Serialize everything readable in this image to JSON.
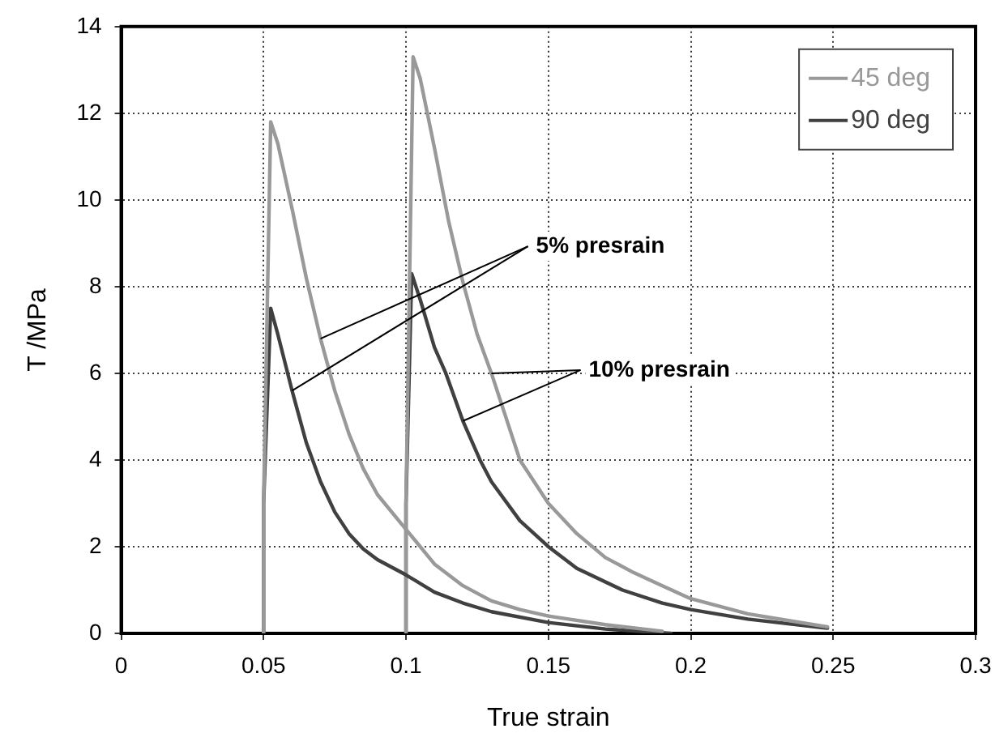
{
  "chart_data": {
    "type": "line",
    "xlabel": "True strain",
    "ylabel": "T /MPa",
    "xlim": [
      0,
      0.3
    ],
    "xticks": [
      0,
      0.05,
      0.1,
      0.15,
      0.2,
      0.25,
      0.3
    ],
    "ylim": [
      0,
      14
    ],
    "yticks": [
      0,
      2,
      4,
      6,
      8,
      10,
      12,
      14
    ],
    "grid": true,
    "legend": "top right",
    "marker": "none",
    "line_style": "solid",
    "annotations": [
      {
        "text": "5% presrain",
        "x": 0.07,
        "y": 6.8
      },
      {
        "text": "10% presrain",
        "x": 0.13,
        "y": 6
      }
    ],
    "series": [
      {
        "name": "45 deg",
        "color": "#999999",
        "x": [
          0.05,
          0.05,
          0.0525,
          0.055,
          0.06,
          0.065,
          0.07,
          0.075,
          0.08,
          0.085,
          0.09,
          0.1,
          0.11,
          0.12,
          0.13,
          0.14,
          0.15,
          0.17,
          0.19
        ],
        "values": [
          0,
          3,
          11.8,
          11.3,
          9.8,
          8.2,
          6.8,
          5.6,
          4.6,
          3.8,
          3.2,
          2.4,
          1.6,
          1.1,
          0.75,
          0.55,
          0.4,
          0.2,
          0.05
        ]
      },
      {
        "name": "90 deg",
        "color": "#404040",
        "x": [
          0.05,
          0.05,
          0.0525,
          0.055,
          0.06,
          0.065,
          0.07,
          0.075,
          0.08,
          0.085,
          0.09,
          0.1,
          0.11,
          0.12,
          0.13,
          0.15,
          0.17,
          0.193
        ],
        "values": [
          0,
          3,
          7.5,
          6.9,
          5.6,
          4.4,
          3.5,
          2.8,
          2.3,
          1.95,
          1.7,
          1.35,
          0.95,
          0.7,
          0.5,
          0.25,
          0.1,
          0
        ]
      },
      {
        "color": "#999999",
        "x": [
          0.1,
          0.1,
          0.1025,
          0.105,
          0.11,
          0.115,
          0.12,
          0.125,
          0.13,
          0.135,
          0.14,
          0.15,
          0.16,
          0.17,
          0.18,
          0.19,
          0.2,
          0.22,
          0.248
        ],
        "values": [
          0,
          3,
          13.3,
          12.8,
          11.2,
          9.5,
          8.1,
          6.9,
          6,
          5,
          4,
          3,
          2.3,
          1.75,
          1.4,
          1.1,
          0.8,
          0.45,
          0.15
        ]
      },
      {
        "color": "#404040",
        "x": [
          0.1,
          0.1,
          0.102,
          0.105,
          0.11,
          0.114,
          0.12,
          0.126,
          0.13,
          0.14,
          0.15,
          0.16,
          0.176,
          0.19,
          0.2,
          0.22,
          0.248
        ],
        "values": [
          0,
          3,
          8.3,
          7.7,
          6.6,
          6,
          4.9,
          4,
          3.5,
          2.6,
          2,
          1.5,
          1,
          0.7,
          0.55,
          0.33,
          0.12
        ]
      }
    ]
  }
}
